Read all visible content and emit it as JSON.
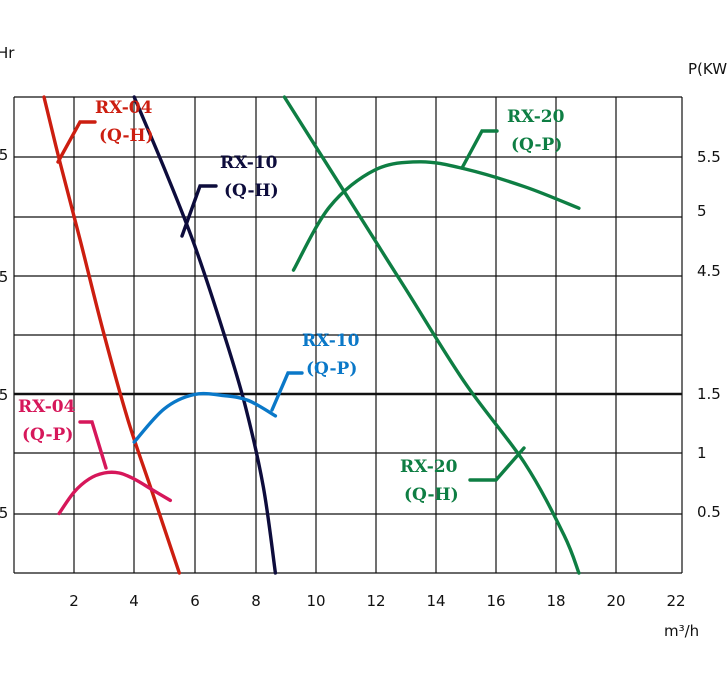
{
  "chart_data": {
    "type": "line",
    "title": "",
    "xlabel": "m³/h",
    "ylabel_left": "Hr",
    "ylabel_right": "P(KW)",
    "x_ticks": [
      "2",
      "4",
      "6",
      "8",
      "10",
      "12",
      "14",
      "16",
      "18",
      "20",
      "22"
    ],
    "xlim": [
      0,
      22
    ],
    "left_ticks": [
      ".5",
      ".5",
      ".5",
      ".5"
    ],
    "right_ticks": [
      "5.5",
      "5",
      "4.5",
      "1.5",
      "1",
      "0.5"
    ],
    "grid": true,
    "series": [
      {
        "name": "RX-04 (Q-H)",
        "label": [
          "RX-04",
          "(Q-H)"
        ],
        "color": "#cc1e10",
        "x": [
          1.0,
          1.5,
          2.2,
          3.0,
          3.8,
          4.6,
          5.5
        ],
        "y": [
          10.0,
          8.7,
          7.0,
          5.0,
          3.2,
          1.7,
          0.0
        ]
      },
      {
        "name": "RX-10 (Q-H)",
        "label": [
          "RX-10",
          "(Q-H)"
        ],
        "color": "#0d0c3c",
        "x": [
          4.0,
          5.0,
          6.0,
          7.0,
          7.7,
          8.3,
          8.7
        ],
        "y": [
          10.0,
          8.5,
          6.9,
          5.0,
          3.5,
          1.8,
          0.0
        ]
      },
      {
        "name": "RX-20 (Q-H)",
        "label": [
          "RX-20",
          "(Q-H)"
        ],
        "color": "#0e7e43",
        "x": [
          9.0,
          11.0,
          13.0,
          15.0,
          17.0,
          18.3,
          18.8
        ],
        "y": [
          10.0,
          8.0,
          6.0,
          4.0,
          2.3,
          0.8,
          0.0
        ]
      },
      {
        "name": "RX-04 (Q-P)",
        "label": [
          "RX-04",
          "(Q-P)"
        ],
        "color": "#d6175a",
        "x": [
          1.5,
          2.0,
          2.5,
          3.0,
          3.5,
          4.0,
          4.6,
          5.2
        ],
        "y": [
          0.5,
          0.68,
          0.79,
          0.84,
          0.84,
          0.79,
          0.7,
          0.61
        ]
      },
      {
        "name": "RX-10 (Q-P)",
        "label": [
          "RX-10",
          "(Q-P)"
        ],
        "color": "#0a78c8",
        "x": [
          4.0,
          5.0,
          6.0,
          7.0,
          7.8,
          8.7
        ],
        "y": [
          1.1,
          1.38,
          1.5,
          1.49,
          1.45,
          1.32
        ]
      },
      {
        "name": "RX-20 (Q-P)",
        "label": [
          "RX-20",
          "(Q-P)"
        ],
        "color": "#0e7e43",
        "x": [
          9.3,
          10.5,
          12.0,
          13.5,
          15.0,
          17.0,
          18.8
        ],
        "y": [
          4.55,
          5.08,
          5.39,
          5.46,
          5.4,
          5.25,
          5.07
        ]
      }
    ]
  }
}
